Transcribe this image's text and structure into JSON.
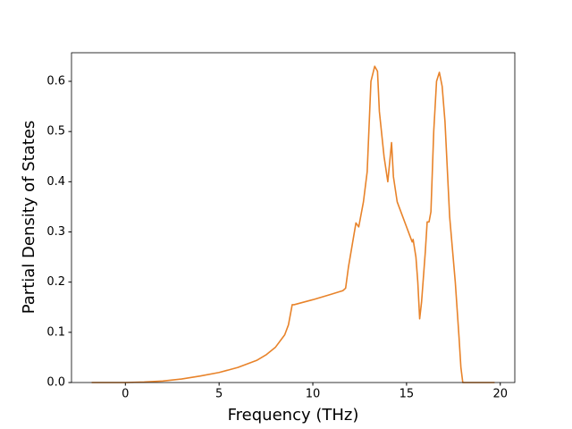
{
  "chart_data": {
    "type": "line",
    "x_label": "Frequency (THz)",
    "y_label": "Partial Density of States",
    "x": [
      -1.8,
      0,
      1,
      2,
      3,
      4,
      5,
      6,
      7,
      7.5,
      8,
      8.5,
      8.7,
      8.9,
      9,
      10,
      11,
      11.6,
      11.75,
      11.9,
      12.3,
      12.45,
      12.7,
      12.9,
      13.1,
      13.3,
      13.45,
      13.55,
      13.8,
      14.0,
      14.2,
      14.3,
      14.5,
      14.8,
      15.0,
      15.15,
      15.3,
      15.35,
      15.5,
      15.6,
      15.7,
      15.8,
      16.0,
      16.1,
      16.2,
      16.3,
      16.45,
      16.6,
      16.75,
      16.9,
      17.05,
      17.3,
      17.6,
      17.8,
      17.9,
      18.0,
      19.0,
      19.7
    ],
    "series": [
      {
        "color": "#e8832a",
        "values": [
          0,
          0,
          0.001,
          0.003,
          0.007,
          0.013,
          0.02,
          0.03,
          0.044,
          0.055,
          0.07,
          0.095,
          0.115,
          0.155,
          0.155,
          0.165,
          0.176,
          0.183,
          0.188,
          0.23,
          0.318,
          0.31,
          0.36,
          0.42,
          0.6,
          0.63,
          0.62,
          0.54,
          0.45,
          0.4,
          0.478,
          0.41,
          0.36,
          0.33,
          0.31,
          0.295,
          0.28,
          0.285,
          0.25,
          0.2,
          0.127,
          0.16,
          0.26,
          0.32,
          0.32,
          0.34,
          0.5,
          0.6,
          0.618,
          0.59,
          0.52,
          0.33,
          0.2,
          0.09,
          0.03,
          0,
          0,
          0
        ]
      }
    ],
    "xlim": [
      -2.875,
      20.775
    ],
    "ylim": [
      0,
      0.657
    ],
    "xticks": [
      0,
      5,
      10,
      15,
      20
    ],
    "yticks": [
      {
        "value": 0,
        "label": "0.0"
      },
      0.1,
      0.2,
      0.3,
      0.4,
      0.5,
      0.6
    ],
    "grid": false
  }
}
